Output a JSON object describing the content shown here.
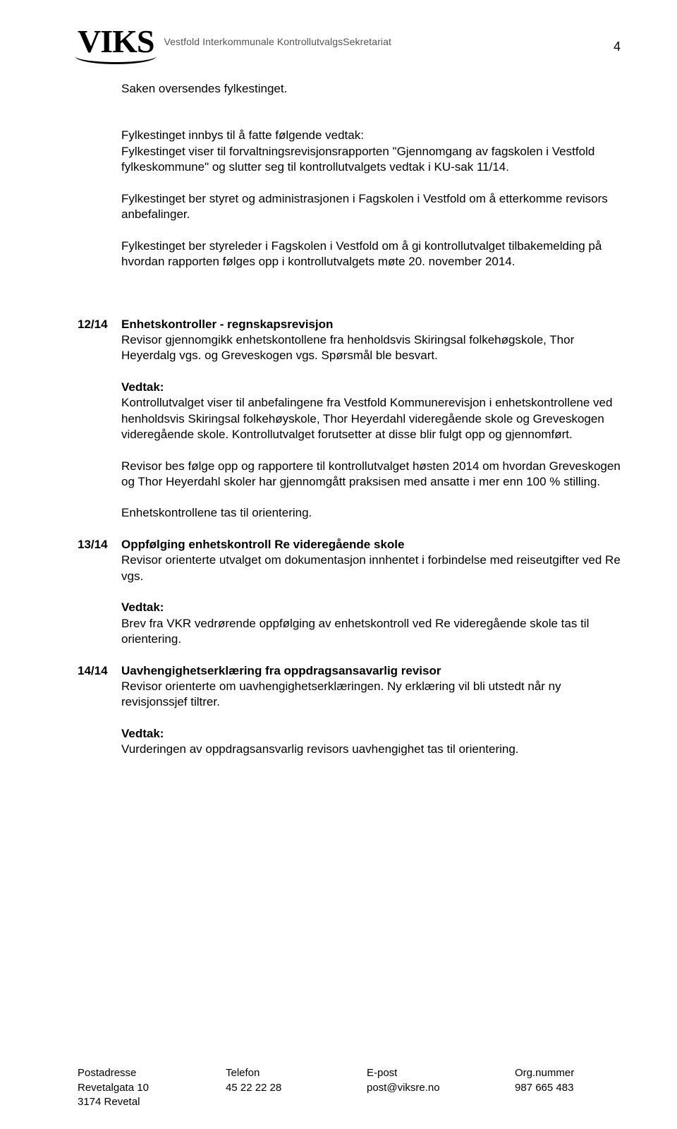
{
  "header": {
    "logo_text": "VIKS",
    "org_name": "Vestfold Interkommunale KontrollutvalgsSekretariat"
  },
  "page_number": "4",
  "intro": {
    "line1": "Saken oversendes fylkestinget.",
    "p1_title": "Fylkestinget innbys til å fatte følgende vedtak:",
    "p1_body": "Fylkestinget viser til forvaltningsrevisjonsrapporten \"Gjennomgang av fagskolen i Vestfold fylkeskommune\" og slutter seg til kontrollutvalgets vedtak i KU-sak 11/14.",
    "p2": "Fylkestinget ber styret og administrasjonen i Fagskolen i Vestfold om å etterkomme revisors anbefalinger.",
    "p3": "Fylkestinget ber styreleder i Fagskolen i Vestfold om å gi kontrollutvalget tilbakemelding på hvordan rapporten følges opp i kontrollutvalgets møte 20. november 2014."
  },
  "items": [
    {
      "num": "12/14",
      "title": "Enhetskontroller - regnskapsrevisjon",
      "lead": "Revisor gjennomgikk enhetskontollene fra henholdsvis Skiringsal folkehøgskole, Thor Heyerdalg vgs. og Greveskogen vgs. Spørsmål ble besvart.",
      "paras": [
        {
          "heading": "Vedtak:",
          "body": "Kontrollutvalget viser til anbefalingene fra Vestfold Kommunerevisjon i enhetskontrollene ved henholdsvis Skiringsal folkehøyskole, Thor Heyerdahl videregående skole og Greveskogen videregående skole. Kontrollutvalget forutsetter at disse blir fulgt opp og gjennomført."
        },
        {
          "body": "Revisor bes følge opp og rapportere til kontrollutvalget høsten 2014 om hvordan Greveskogen og Thor Heyerdahl skoler har gjennomgått praksisen med ansatte i mer enn 100 % stilling."
        },
        {
          "body": "Enhetskontrollene tas til orientering."
        }
      ]
    },
    {
      "num": "13/14",
      "title": "Oppfølging enhetskontroll Re videregående skole",
      "lead": "Revisor orienterte utvalget om  dokumentasjon innhentet i forbindelse med reiseutgifter ved Re vgs.",
      "paras": [
        {
          "heading": "Vedtak:",
          "body": "Brev fra VKR vedrørende oppfølging av enhetskontroll ved Re videregående skole tas til orientering."
        }
      ]
    },
    {
      "num": "14/14",
      "title": "Uavhengighetserklæring fra oppdragsansavarlig revisor",
      "lead": "Revisor orienterte om uavhengighetserklæringen. Ny erklæring vil bli utstedt når ny revisjonssjef tiltrer.",
      "paras": [
        {
          "heading": "Vedtak:",
          "body": "Vurderingen av oppdragsansvarlig revisors uavhengighet tas til orientering."
        }
      ]
    }
  ],
  "footer": {
    "col1": {
      "h": "Postadresse",
      "l1": "Revetalgata 10",
      "l2": "3174 Revetal"
    },
    "col2": {
      "h": "Telefon",
      "l1": "45 22 22 28"
    },
    "col3": {
      "h": "E-post",
      "l1": "post@viksre.no"
    },
    "col4": {
      "h": "Org.nummer",
      "l1": "987 665 483"
    }
  }
}
